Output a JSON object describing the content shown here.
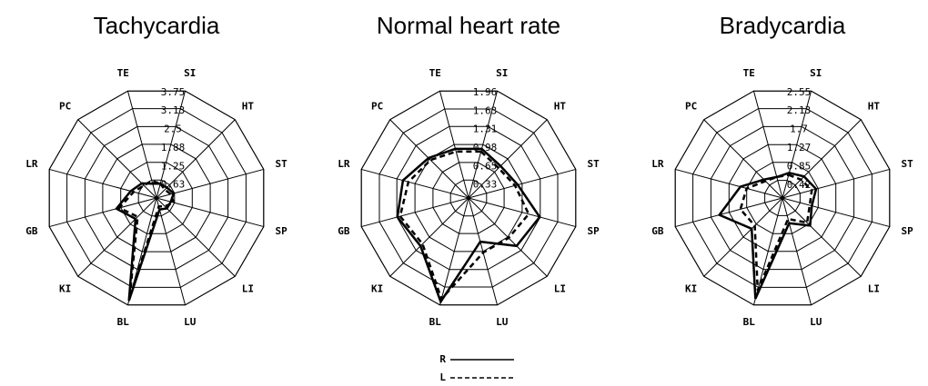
{
  "chart_data": [
    {
      "type": "radar",
      "title": "Tachycardia",
      "categories": [
        "SI",
        "HT",
        "ST",
        "SP",
        "LI",
        "LU",
        "BL",
        "KI",
        "GB",
        "LR",
        "PC",
        "TE"
      ],
      "rlim": [
        0,
        3.75
      ],
      "rticks": [
        0.63,
        1.25,
        1.88,
        2.5,
        3.13,
        3.75
      ],
      "series": [
        {
          "name": "R",
          "color": "#000000",
          "line_style": "solid",
          "values": [
            0.5,
            0.5,
            0.6,
            0.5,
            0.5,
            0.4,
            3.6,
            1.0,
            1.4,
            0.9,
            0.7,
            0.5
          ]
        },
        {
          "name": "L",
          "color": "#000000",
          "line_style": "dashed",
          "values": [
            0.5,
            0.4,
            0.5,
            0.6,
            0.4,
            0.3,
            3.5,
            0.9,
            1.3,
            0.8,
            0.6,
            0.6
          ]
        }
      ]
    },
    {
      "type": "radar",
      "title": "Normal heart rate",
      "categories": [
        "SI",
        "HT",
        "ST",
        "SP",
        "LI",
        "LU",
        "BL",
        "KI",
        "GB",
        "LR",
        "PC",
        "TE"
      ],
      "rlim": [
        0,
        1.96
      ],
      "rticks": [
        0.33,
        0.65,
        0.98,
        1.31,
        1.63,
        1.96
      ],
      "series": [
        {
          "name": "R",
          "color": "#000000",
          "line_style": "solid",
          "values": [
            0.9,
            0.8,
            0.9,
            1.3,
            1.2,
            0.8,
            1.9,
            1.2,
            1.3,
            1.2,
            1.0,
            0.9
          ]
        },
        {
          "name": "L",
          "color": "#000000",
          "line_style": "dashed",
          "values": [
            0.85,
            0.75,
            0.85,
            1.1,
            1.0,
            1.0,
            1.85,
            1.15,
            1.25,
            1.1,
            0.95,
            0.85
          ]
        }
      ]
    },
    {
      "type": "radar",
      "title": "Bradycardia",
      "categories": [
        "SI",
        "HT",
        "ST",
        "SP",
        "LI",
        "LU",
        "BL",
        "KI",
        "GB",
        "LR",
        "PC",
        "TE"
      ],
      "rlim": [
        0,
        2.55
      ],
      "rticks": [
        0.42,
        0.85,
        1.27,
        1.7,
        2.13,
        2.55
      ],
      "series": [
        {
          "name": "R",
          "color": "#000000",
          "line_style": "solid",
          "values": [
            0.6,
            0.7,
            0.8,
            0.7,
            0.9,
            0.6,
            2.4,
            1.0,
            1.5,
            1.0,
            0.6,
            0.5
          ]
        },
        {
          "name": "L",
          "color": "#000000",
          "line_style": "dashed",
          "values": [
            0.55,
            0.6,
            0.7,
            0.65,
            0.8,
            0.5,
            2.2,
            0.9,
            1.0,
            0.85,
            0.55,
            0.5
          ]
        }
      ]
    }
  ]
}
